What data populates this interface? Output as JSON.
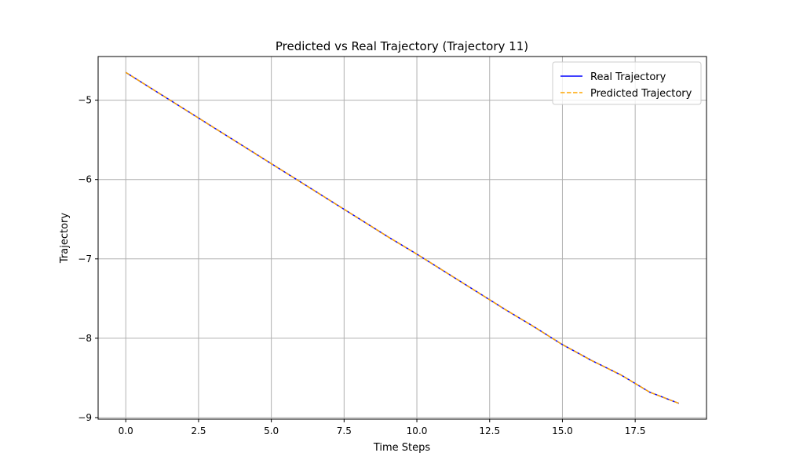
{
  "chart_data": {
    "type": "line",
    "title": "Predicted vs Real Trajectory (Trajectory 11)",
    "xlabel": "Time Steps",
    "ylabel": "Trajectory",
    "xlim": [
      -0.95,
      19.95
    ],
    "ylim": [
      -9.02,
      -4.45
    ],
    "xticks": [
      0.0,
      2.5,
      5.0,
      7.5,
      10.0,
      12.5,
      15.0,
      17.5
    ],
    "xtick_labels": [
      "0.0",
      "2.5",
      "5.0",
      "7.5",
      "10.0",
      "12.5",
      "15.0",
      "17.5"
    ],
    "yticks": [
      -5,
      -6,
      -7,
      -8,
      -9
    ],
    "ytick_labels": [
      "−5",
      "−6",
      "−7",
      "−8",
      "−9"
    ],
    "grid": true,
    "legend_position": "upper right",
    "x": [
      0,
      1,
      2,
      3,
      4,
      5,
      6,
      7,
      8,
      9,
      10,
      11,
      12,
      13,
      14,
      15,
      16,
      17,
      18,
      19
    ],
    "series": [
      {
        "name": "Real Trajectory",
        "color": "#0000ff",
        "style": "solid",
        "values": [
          -4.65,
          -4.88,
          -5.11,
          -5.34,
          -5.57,
          -5.8,
          -6.03,
          -6.26,
          -6.49,
          -6.72,
          -6.94,
          -7.17,
          -7.4,
          -7.63,
          -7.85,
          -8.08,
          -8.28,
          -8.46,
          -8.68,
          -8.82
        ]
      },
      {
        "name": "Predicted Trajectory",
        "color": "#ffa500",
        "style": "dashed",
        "values": [
          -4.65,
          -4.88,
          -5.11,
          -5.34,
          -5.57,
          -5.8,
          -6.03,
          -6.26,
          -6.49,
          -6.72,
          -6.94,
          -7.17,
          -7.4,
          -7.63,
          -7.85,
          -8.08,
          -8.28,
          -8.46,
          -8.68,
          -8.82
        ]
      }
    ]
  }
}
